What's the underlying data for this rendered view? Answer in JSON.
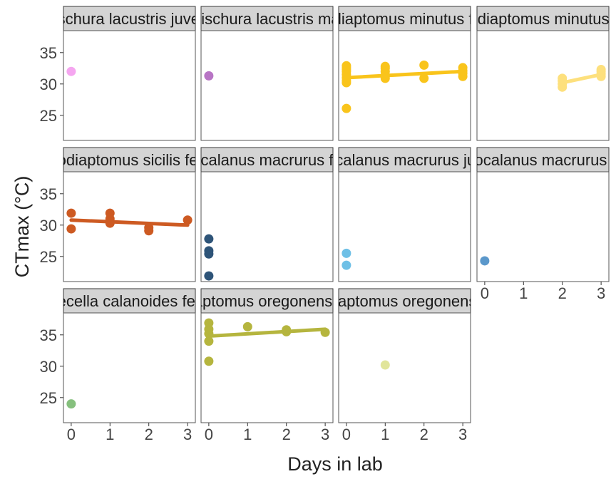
{
  "chart_data": {
    "type": "scatter",
    "facet_layout": "3 rows x 4 columns, shared axes, trend lines on multi-day panels",
    "xlabel": "Days in lab",
    "ylabel": "CTmax (°C)",
    "xlim": [
      -0.2,
      3.2
    ],
    "ylim": [
      21,
      38.5
    ],
    "x_ticks": [
      "0",
      "1",
      "2",
      "3"
    ],
    "y_ticks": [
      "25",
      "30",
      "35"
    ],
    "grid": false,
    "panels": [
      {
        "strip": "Epischura lacustris juvenile",
        "color": "#F5A6F0",
        "points": [
          [
            0,
            32.0
          ]
        ],
        "trend": null
      },
      {
        "strip": "Epischura lacustris male",
        "color": "#B875C5",
        "points": [
          [
            0,
            31.3
          ]
        ],
        "trend": null
      },
      {
        "strip": "Leptodiaptomus minutus female",
        "color": "#F9C41B",
        "points": [
          [
            0,
            26.1
          ],
          [
            0,
            30.2
          ],
          [
            0,
            30.5
          ],
          [
            0,
            31.0
          ],
          [
            0,
            31.5
          ],
          [
            0,
            32.0
          ],
          [
            0,
            32.3
          ],
          [
            0,
            32.6
          ],
          [
            0,
            32.9
          ],
          [
            1,
            30.9
          ],
          [
            1,
            31.4
          ],
          [
            1,
            32.0
          ],
          [
            1,
            32.5
          ],
          [
            1,
            32.8
          ],
          [
            2,
            30.9
          ],
          [
            2,
            33.0
          ],
          [
            3,
            31.2
          ],
          [
            3,
            31.7
          ],
          [
            3,
            32.1
          ],
          [
            3,
            32.6
          ]
        ],
        "trend": [
          [
            0,
            31.0
          ],
          [
            3,
            32.0
          ]
        ]
      },
      {
        "strip": "Leptodiaptomus minutus male",
        "color": "#FDE07D",
        "points": [
          [
            2,
            29.5
          ],
          [
            2,
            30.0
          ],
          [
            2,
            30.5
          ],
          [
            2,
            30.9
          ],
          [
            3,
            31.2
          ],
          [
            3,
            31.6
          ],
          [
            3,
            32.0
          ],
          [
            3,
            32.3
          ]
        ],
        "trend": [
          [
            2,
            30.2
          ],
          [
            3,
            31.5
          ]
        ]
      },
      {
        "strip": "Leptodiaptomus sicilis female",
        "color": "#CD5A22",
        "points": [
          [
            0,
            29.4
          ],
          [
            0,
            31.9
          ],
          [
            1,
            30.3
          ],
          [
            1,
            31.0
          ],
          [
            1,
            31.9
          ],
          [
            2,
            29.1
          ],
          [
            2,
            29.6
          ],
          [
            3,
            30.8
          ]
        ],
        "trend": [
          [
            0,
            30.8
          ],
          [
            3,
            30.0
          ]
        ]
      },
      {
        "strip": "Limnocalanus macrurus female",
        "color": "#2E5478",
        "points": [
          [
            0,
            21.9
          ],
          [
            0,
            25.4
          ],
          [
            0,
            25.9
          ],
          [
            0,
            27.8
          ]
        ],
        "trend": null
      },
      {
        "strip": "Limnocalanus macrurus juvenile",
        "color": "#6FC0E6",
        "points": [
          [
            0,
            23.6
          ],
          [
            0,
            25.5
          ]
        ],
        "trend": null
      },
      {
        "strip": "Limnocalanus macrurus male",
        "color": "#5B98CB",
        "points": [
          [
            0,
            24.3
          ]
        ],
        "trend": null
      },
      {
        "strip": "Senecella calanoides female",
        "color": "#86C07E",
        "points": [
          [
            0,
            24.0
          ]
        ],
        "trend": null
      },
      {
        "strip": "Skistodiaptomus oregonensis female",
        "color": "#B5B53E",
        "points": [
          [
            0,
            30.8
          ],
          [
            0,
            34.0
          ],
          [
            0,
            35.2
          ],
          [
            0,
            35.9
          ],
          [
            0,
            36.9
          ],
          [
            1,
            36.3
          ],
          [
            2,
            35.5
          ],
          [
            2,
            35.8
          ],
          [
            3,
            35.4
          ]
        ],
        "trend": [
          [
            0,
            34.8
          ],
          [
            3,
            35.9
          ]
        ]
      },
      {
        "strip": "Skistodiaptomus oregonensis male",
        "color": "#E1E59A",
        "points": [
          [
            1,
            30.2
          ]
        ],
        "trend": null
      }
    ]
  }
}
